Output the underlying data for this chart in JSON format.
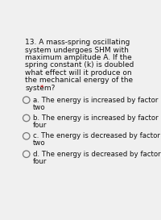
{
  "background_color": "#f0f0f0",
  "question_lines": [
    "13. A mass-spring oscillating",
    "system undergoes SHM with",
    "maximum amplitude A. If the",
    "spring constant (k) is doubled",
    "what effect will it produce on",
    "the mechanical energy of the",
    "system?"
  ],
  "required_marker": "*",
  "options": [
    {
      "label": "a.",
      "line1": "The energy is increased by factor",
      "line2": "two"
    },
    {
      "label": "b.",
      "line1": "The energy is increased by factor",
      "line2": "four"
    },
    {
      "label": "c.",
      "line1": "The energy is decreased by factor",
      "line2": "two"
    },
    {
      "label": "d.",
      "line1": "The energy is decreased by factor",
      "line2": "four"
    }
  ],
  "circle_color": "#777777",
  "text_color": "#111111",
  "required_color": "#cc0000",
  "font_size_question": 6.5,
  "font_size_options": 6.2,
  "fig_width": 2.0,
  "fig_height": 2.73,
  "dpi": 100
}
